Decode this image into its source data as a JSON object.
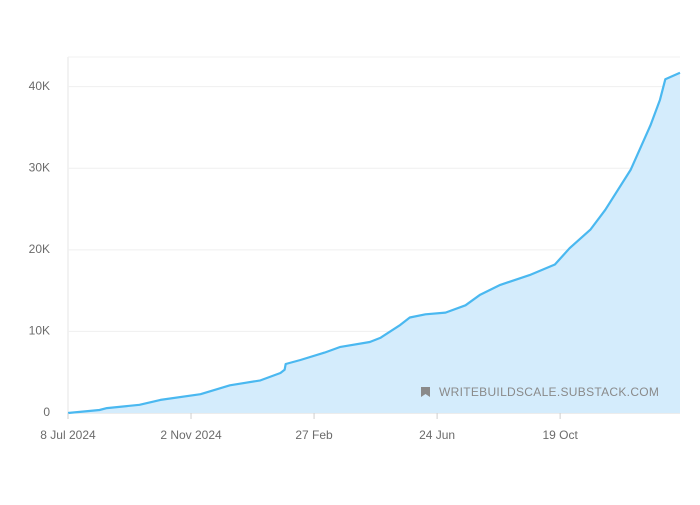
{
  "chart_data": {
    "type": "area",
    "x": [
      "2024-07-08",
      "2024-08-07",
      "2024-08-14",
      "2024-09-14",
      "2024-10-04",
      "2024-11-11",
      "2024-12-09",
      "2025-01-07",
      "2025-01-26",
      "2025-01-30",
      "2025-01-31",
      "2025-02-14",
      "2025-03-09",
      "2025-03-24",
      "2025-04-21",
      "2025-05-01",
      "2025-05-20",
      "2025-05-29",
      "2025-06-13",
      "2025-07-02",
      "2025-07-21",
      "2025-08-04",
      "2025-08-23",
      "2025-09-20",
      "2025-10-14",
      "2025-10-28",
      "2025-11-17",
      "2025-12-01",
      "2025-12-25",
      "2026-01-13",
      "2026-01-22",
      "2026-01-27",
      "2026-02-10"
    ],
    "values": [
      0,
      370,
      600,
      1000,
      1600,
      2300,
      3400,
      4000,
      4900,
      5300,
      6000,
      6500,
      7400,
      8100,
      8700,
      9200,
      10800,
      11700,
      12100,
      12300,
      13200,
      14500,
      15700,
      16900,
      18200,
      20200,
      22500,
      24900,
      29800,
      35300,
      38400,
      40900,
      41700
    ],
    "color": "#4ab8f0",
    "fill": "#d4ecfc",
    "xlim": [
      "2024-07-08",
      "2026-02-10"
    ],
    "xticks": [
      {
        "value": "2024-07-08",
        "label": "8 Jul 2024"
      },
      {
        "value": "2024-11-02",
        "label": "2 Nov 2024"
      },
      {
        "value": "2025-02-27",
        "label": "27 Feb"
      },
      {
        "value": "2025-06-24",
        "label": "24 Jun"
      },
      {
        "value": "2025-10-19",
        "label": "19 Oct"
      }
    ],
    "ylim": [
      0,
      44000
    ],
    "yticks": [
      0,
      {
        "value": 10000,
        "label": "10K"
      },
      {
        "value": 20000,
        "label": "20K"
      },
      {
        "value": 30000,
        "label": "30K"
      },
      {
        "value": 40000,
        "label": "40K"
      }
    ],
    "grid": true,
    "watermark": "WRITEBUILDSCALE.SUBSTACK.COM"
  }
}
